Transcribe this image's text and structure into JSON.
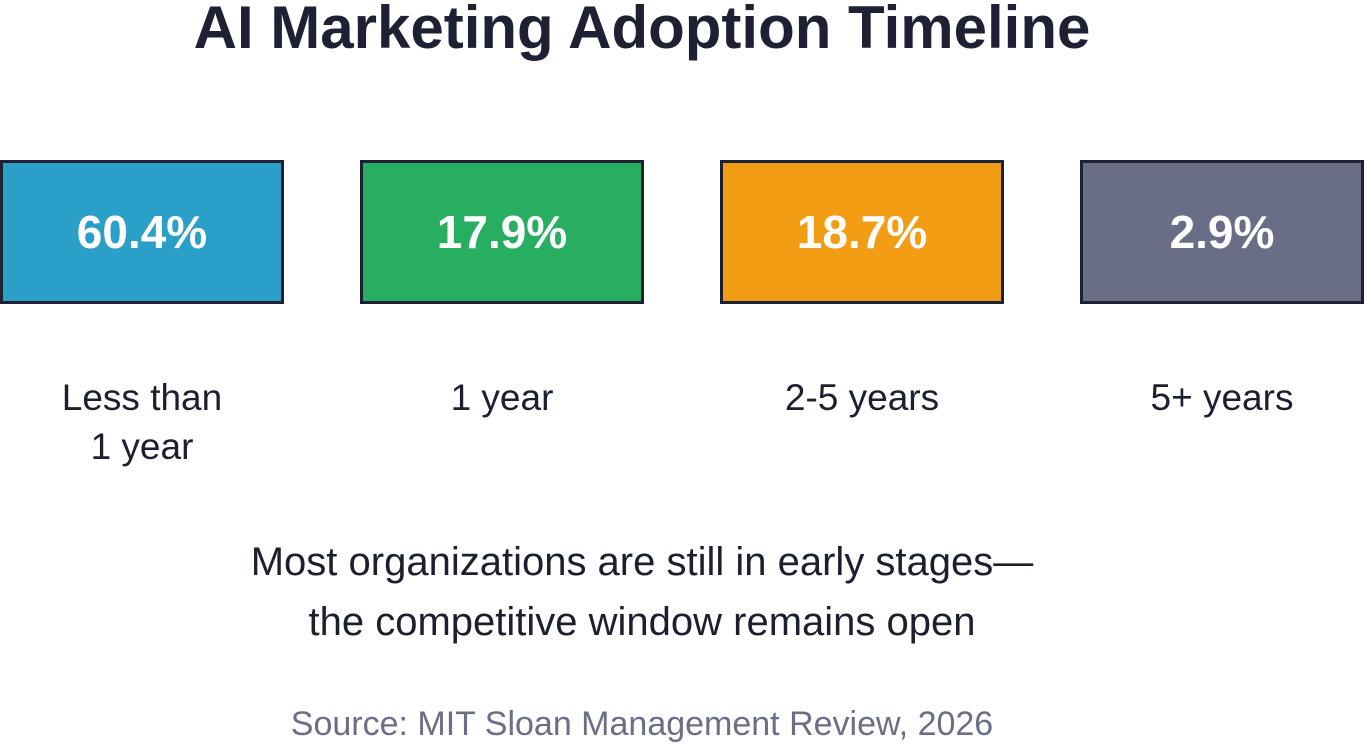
{
  "chart_data": {
    "type": "bar",
    "title": "AI Marketing Adoption Timeline",
    "categories": [
      "Less than 1 year",
      "1 year",
      "2-5 years",
      "5+ years"
    ],
    "values": [
      60.4,
      17.9,
      18.7,
      2.9
    ],
    "value_labels": [
      "60.4%",
      "17.9%",
      "18.7%",
      "2.9%"
    ],
    "colors": [
      "#2a9fc7",
      "#28ae60",
      "#f29d13",
      "#696d86"
    ],
    "annotation_lines": [
      "Most organizations are still in early stages—",
      "the competitive window remains open"
    ],
    "source": "Source: MIT Sloan Management Review, 2026"
  }
}
